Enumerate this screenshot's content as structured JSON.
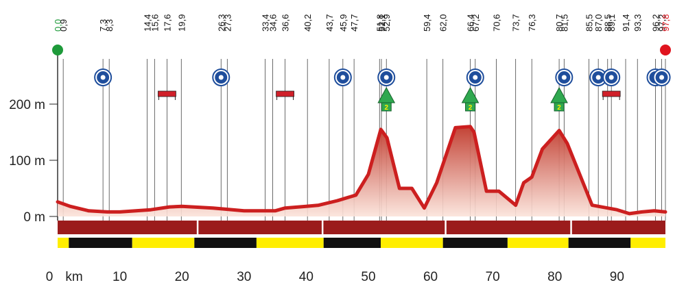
{
  "chart_data": {
    "type": "area",
    "title": "",
    "xlabel": "",
    "ylabel": "",
    "x_unit": "km",
    "y_unit": "m",
    "xlim": [
      0,
      97.8
    ],
    "ylim": [
      0,
      300
    ],
    "x_ticks": [
      0,
      10,
      20,
      30,
      40,
      50,
      60,
      70,
      80,
      90
    ],
    "x_tick_labels": [
      "0",
      "10",
      "20",
      "30",
      "40",
      "50",
      "60",
      "70",
      "80",
      "90"
    ],
    "y_ticks": [
      0,
      100,
      200
    ],
    "y_tick_labels": [
      "0 m",
      "100 m",
      "200 m"
    ],
    "series": [
      {
        "x": [
          0,
          2,
          5,
          8,
          10,
          15,
          18,
          20,
          25,
          30,
          35,
          36.6,
          40,
          42,
          45,
          48,
          50,
          52,
          53,
          55,
          57,
          59,
          61,
          64,
          66.4,
          67,
          69,
          71,
          73.7,
          75,
          76.3,
          78,
          80.7,
          82,
          86,
          90,
          92,
          94,
          96,
          97.8
        ],
        "y": [
          26,
          18,
          10,
          8,
          8,
          12,
          17,
          18,
          15,
          10,
          10,
          15,
          18,
          20,
          28,
          38,
          75,
          155,
          140,
          50,
          50,
          15,
          60,
          158,
          160,
          150,
          45,
          45,
          20,
          60,
          70,
          120,
          153,
          130,
          20,
          12,
          5,
          8,
          10,
          8
        ]
      }
    ],
    "km_markers": [
      "0,0",
      "0,9",
      "7,3",
      "8,3",
      "14,4",
      "15,6",
      "17,6",
      "19,9",
      "26,3",
      "27,3",
      "33,4",
      "34,6",
      "36,6",
      "40,2",
      "43,7",
      "45,9",
      "47,7",
      "51,8",
      "52,1",
      "52,9",
      "59,4",
      "62,0",
      "66,4",
      "67,2",
      "70,6",
      "73,7",
      "76,3",
      "80,7",
      "81,5",
      "85,5",
      "87,0",
      "88,5",
      "89,1",
      "91,4",
      "93,3",
      "96,2",
      "97,2",
      "97,8"
    ],
    "marker_x": [
      0,
      0.9,
      7.3,
      8.3,
      14.4,
      15.6,
      17.6,
      19.9,
      26.3,
      27.3,
      33.4,
      34.6,
      36.6,
      40.2,
      43.7,
      45.9,
      47.7,
      51.8,
      52.1,
      52.9,
      59.4,
      62.0,
      66.4,
      67.2,
      70.6,
      73.7,
      76.3,
      80.7,
      81.5,
      85.5,
      87.0,
      88.5,
      89.1,
      91.4,
      93.3,
      96.2,
      97.2,
      97.8
    ],
    "start_marker": {
      "label": "0,0",
      "color": "#1e9a3a"
    },
    "finish_marker": {
      "label": "97,8",
      "color": "#e0141e"
    },
    "roundabout_icons_x": [
      7.3,
      26.3,
      45.9,
      52.9,
      67.2,
      81.5,
      87.0,
      89.1,
      96.2,
      97.2
    ],
    "bar_icons_x": [
      17.6,
      36.6,
      89.1
    ],
    "gpm_icons": [
      {
        "x": 52.9,
        "label": "2"
      },
      {
        "x": 66.4,
        "label": "2"
      },
      {
        "x": 80.7,
        "label": "2"
      }
    ],
    "colors": {
      "profile_line": "#cc1f1f",
      "fill_top": "#c0392b",
      "fill_bottom": "#fbe3da",
      "base_band": "#9b1c1c",
      "stripe_yellow": "#ffee00",
      "stripe_black": "#111111",
      "gpm_green": "#2fa84f",
      "icon_blue": "#1f4e9c"
    },
    "stripe_segments": [
      {
        "x0": 0,
        "x1": 1.8,
        "color": "yellow"
      },
      {
        "x0": 1.8,
        "x1": 12,
        "color": "black"
      },
      {
        "x0": 12,
        "x1": 22,
        "color": "yellow"
      },
      {
        "x0": 22,
        "x1": 32,
        "color": "black"
      },
      {
        "x0": 32,
        "x1": 42.8,
        "color": "yellow"
      },
      {
        "x0": 42.8,
        "x1": 52,
        "color": "black"
      },
      {
        "x0": 52,
        "x1": 62,
        "color": "yellow"
      },
      {
        "x0": 62,
        "x1": 72.4,
        "color": "black"
      },
      {
        "x0": 72.4,
        "x1": 82.2,
        "color": "yellow"
      },
      {
        "x0": 82.2,
        "x1": 92.2,
        "color": "black"
      },
      {
        "x0": 92.2,
        "x1": 97.8,
        "color": "yellow"
      }
    ],
    "band_gaps_x": [
      22.5,
      42.6,
      62.4,
      82.6
    ]
  }
}
